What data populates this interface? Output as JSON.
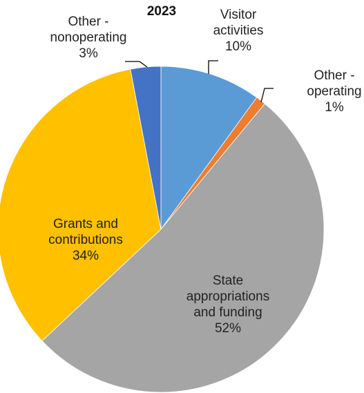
{
  "chart_data": {
    "type": "pie",
    "title": "2023",
    "slices": [
      {
        "name": "Visitor activities",
        "value": 10,
        "label_lines": [
          "Visitor",
          "activities",
          "10%"
        ],
        "color": "#5b9bd5"
      },
      {
        "name": "Other - operating",
        "value": 1,
        "label_lines": [
          "Other -",
          "operating",
          "1%"
        ],
        "color": "#ed7d31"
      },
      {
        "name": "State appropriations and funding",
        "value": 52,
        "label_lines": [
          "State",
          "appropriations",
          "and funding",
          "52%"
        ],
        "color": "#a5a5a5"
      },
      {
        "name": "Grants and contributions",
        "value": 34,
        "label_lines": [
          "Grants and",
          "contributions",
          "34%"
        ],
        "color": "#ffc000"
      },
      {
        "name": "Other - nonoperating",
        "value": 3,
        "label_lines": [
          "Other -",
          "nonoperating",
          "3%"
        ],
        "color": "#4472c4"
      }
    ]
  }
}
